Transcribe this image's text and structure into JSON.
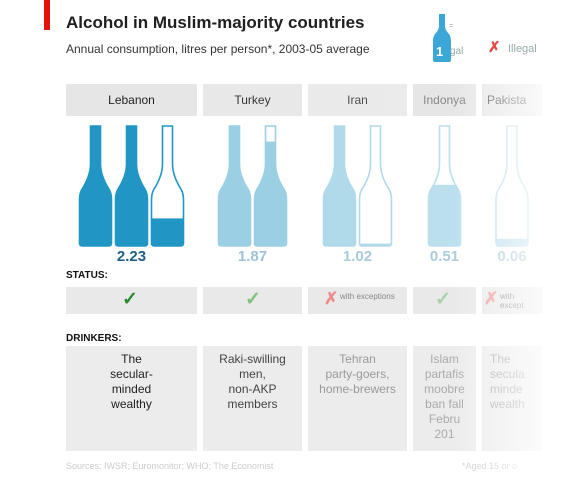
{
  "title": "Alcohol in Muslim-majority countries",
  "subtitle": "Annual consumption, litres per person*, 2003-05 average",
  "legend": {
    "bottle_number": "1",
    "bottle_unit": "gal",
    "bottle_small": "=",
    "illegal_mark": "✗",
    "illegal_label": "Illegal"
  },
  "labels": {
    "status": "STATUS:",
    "drinkers": "DRINKERS:"
  },
  "colors": {
    "full_bottle": "#2196c4",
    "status_check": "#2e8b2e",
    "status_x": "#e34b4b",
    "header_bg": "#e6e6e6"
  },
  "chart_data": {
    "type": "bar",
    "categories": [
      "Lebanon",
      "Turkey",
      "Iran",
      "Indonya",
      "Pakista"
    ],
    "values": [
      2.23,
      1.87,
      1.02,
      0.51,
      0.06
    ],
    "value_labels": [
      "2.23",
      "1.87",
      "1.02",
      "0.5​1",
      "0.06"
    ],
    "title": "Alcohol in Muslim-majority countries",
    "subtitle": "Annual consumption, litres per person*, 2003-05 average"
  },
  "countries": [
    {
      "name": "Lebanon",
      "value_label": "2.23",
      "status": "check",
      "status_note": "",
      "drinkers": [
        "The",
        "secular-",
        "minded",
        "wealthy"
      ]
    },
    {
      "name": "Turkey",
      "value_label": "1.87",
      "status": "check",
      "status_note": "",
      "drinkers": [
        "Raki-swilling",
        "men,",
        "non-AKP",
        "members"
      ]
    },
    {
      "name": "Iran",
      "value_label": "1.02",
      "status": "x",
      "status_note": "with exceptions",
      "drinkers": [
        "Tehran",
        "party-goers,",
        "home-brewers"
      ]
    },
    {
      "name": "Indonya",
      "value_label": "0.5​1",
      "status": "check",
      "status_note": "",
      "drinkers": [
        "Islam",
        "partafis",
        "moobre",
        "ban fall",
        "Febru",
        "201"
      ]
    },
    {
      "name": "Pakista",
      "value_label": "0.06",
      "status": "x",
      "status_note": "with except",
      "drinkers": [
        "The",
        "secula",
        "minde",
        "wealth"
      ]
    }
  ],
  "sources": "Sources: IWSR; Euromonitor; WHO; The Economist",
  "footnote": "*Aged 15 or o"
}
